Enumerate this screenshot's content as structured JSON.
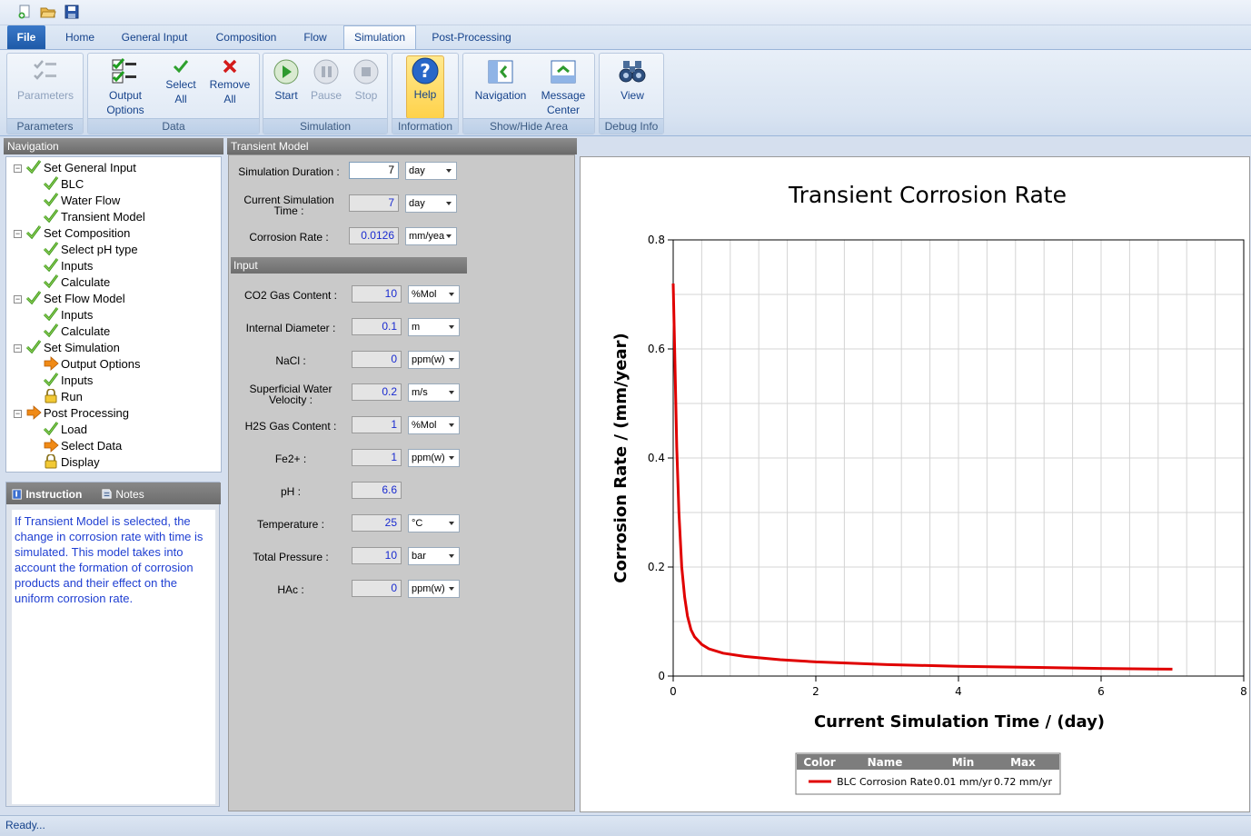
{
  "tabs": [
    "File",
    "Home",
    "General Input",
    "Composition",
    "Flow",
    "Simulation",
    "Post-Processing"
  ],
  "ribbon": {
    "groups": {
      "parameters": "Parameters",
      "data": "Data",
      "simulation": "Simulation",
      "information": "Information",
      "show_hide": "Show/Hide Area",
      "debug": "Debug Info"
    },
    "buttons": {
      "parameters": "Parameters",
      "output_options_1": "Output",
      "output_options_2": "Options",
      "select_all_1": "Select",
      "select_all_2": "All",
      "remove_all_1": "Remove",
      "remove_all_2": "All",
      "start": "Start",
      "pause": "Pause",
      "stop": "Stop",
      "help": "Help",
      "navigation": "Navigation",
      "message_center_1": "Message",
      "message_center_2": "Center",
      "view": "View"
    }
  },
  "navigation": {
    "title": "Navigation",
    "tree": [
      {
        "label": "Set General Input",
        "level": 0,
        "icon": "check-icon"
      },
      {
        "label": "BLC",
        "level": 1,
        "icon": "check-icon"
      },
      {
        "label": "Water Flow",
        "level": 1,
        "icon": "check-icon"
      },
      {
        "label": "Transient Model",
        "level": 1,
        "icon": "check-icon"
      },
      {
        "label": "Set Composition",
        "level": 0,
        "icon": "check-icon"
      },
      {
        "label": "Select pH type",
        "level": 1,
        "icon": "check-icon"
      },
      {
        "label": "Inputs",
        "level": 1,
        "icon": "check-icon"
      },
      {
        "label": "Calculate",
        "level": 1,
        "icon": "check-icon"
      },
      {
        "label": "Set Flow Model",
        "level": 0,
        "icon": "check-icon"
      },
      {
        "label": "Inputs",
        "level": 1,
        "icon": "check-icon"
      },
      {
        "label": "Calculate",
        "level": 1,
        "icon": "check-icon"
      },
      {
        "label": "Set Simulation",
        "level": 0,
        "icon": "check-icon"
      },
      {
        "label": "Output Options",
        "level": 1,
        "icon": "arrow-icon"
      },
      {
        "label": "Inputs",
        "level": 1,
        "icon": "check-icon"
      },
      {
        "label": "Run",
        "level": 1,
        "icon": "lock-icon"
      },
      {
        "label": "Post Processing",
        "level": 0,
        "icon": "arrow-icon"
      },
      {
        "label": "Load",
        "level": 1,
        "icon": "check-icon"
      },
      {
        "label": "Select Data",
        "level": 1,
        "icon": "arrow-icon"
      },
      {
        "label": "Display",
        "level": 1,
        "icon": "lock-icon"
      }
    ]
  },
  "instruction": {
    "tab_instruction": "Instruction",
    "tab_notes": "Notes",
    "text": "If Transient Model is selected,  the change in corrosion rate with time is simulated. This model takes into account the  formation of corrosion products and their effect on the uniform corrosion rate."
  },
  "transient_model": {
    "title": "Transient Model",
    "sim_duration": {
      "label": "Simulation Duration :",
      "value": "7",
      "unit": "day"
    },
    "current_sim_time": {
      "label1": "Current Simulation",
      "label2": "Time :",
      "value": "7",
      "unit": "day"
    },
    "corrosion_rate": {
      "label": "Corrosion Rate :",
      "value": "0.0126",
      "unit": "mm/yea"
    },
    "input_section": "Input",
    "inputs": [
      {
        "label": "CO2 Gas Content :",
        "value": "10",
        "unit": "%Mol"
      },
      {
        "label": "Internal Diameter :",
        "value": "0.1",
        "unit": "m"
      },
      {
        "label": "NaCl :",
        "value": "0",
        "unit": "ppm(w)"
      },
      {
        "label": "Superficial Water",
        "label2": "Velocity :",
        "value": "0.2",
        "unit": "m/s"
      },
      {
        "label": "H2S Gas Content :",
        "value": "1",
        "unit": "%Mol"
      },
      {
        "label": "Fe2+ :",
        "value": "1",
        "unit": "ppm(w)"
      },
      {
        "label": "pH :",
        "value": "6.6",
        "unit": ""
      },
      {
        "label": "Temperature :",
        "value": "25",
        "unit": "°C"
      },
      {
        "label": "Total Pressure :",
        "value": "10",
        "unit": "bar"
      },
      {
        "label": "HAc :",
        "value": "0",
        "unit": "ppm(w)"
      }
    ]
  },
  "chart_data": {
    "type": "line",
    "title": "Transient Corrosion Rate",
    "xlabel": "Current Simulation Time / (day)",
    "ylabel": "Corrosion Rate / (mm/year)",
    "xlim": [
      0,
      8
    ],
    "ylim": [
      0,
      0.8
    ],
    "xticks": [
      "0",
      "2",
      "4",
      "6",
      "8"
    ],
    "yticks": [
      "0",
      "0.2",
      "0.4",
      "0.6",
      "0.8"
    ],
    "grid": true,
    "series": [
      {
        "name": "BLC Corrosion Rate",
        "color": "#e00000",
        "x": [
          0.0,
          0.02,
          0.05,
          0.08,
          0.12,
          0.16,
          0.2,
          0.25,
          0.3,
          0.4,
          0.5,
          0.7,
          1.0,
          1.5,
          2.0,
          3.0,
          4.0,
          5.0,
          6.0,
          7.0
        ],
        "y": [
          0.72,
          0.6,
          0.42,
          0.3,
          0.2,
          0.145,
          0.11,
          0.085,
          0.072,
          0.058,
          0.05,
          0.042,
          0.036,
          0.03,
          0.026,
          0.021,
          0.018,
          0.016,
          0.014,
          0.0126
        ]
      }
    ],
    "legend": {
      "headers": [
        "Color",
        "Name",
        "Min",
        "Max"
      ],
      "rows": [
        {
          "name": "BLC Corrosion Rate",
          "min": "0.01 mm/yr",
          "max": "0.72 mm/yr"
        }
      ]
    }
  },
  "status": "Ready..."
}
